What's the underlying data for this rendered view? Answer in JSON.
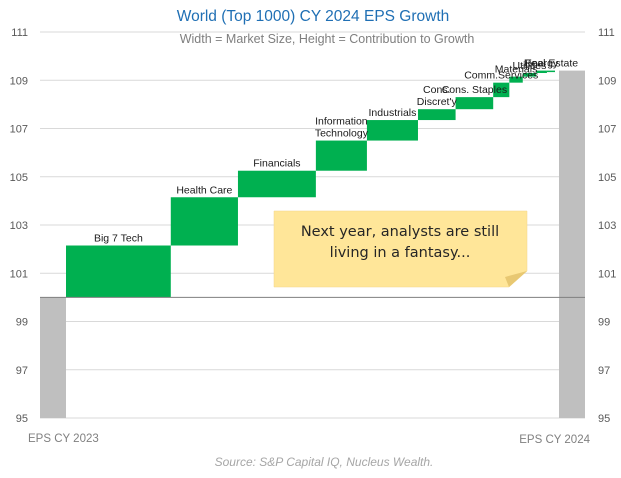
{
  "chart_data": {
    "type": "bar",
    "subtype": "variable-width waterfall (marimekko)",
    "title": "World (Top 1000) CY 2024 EPS Growth",
    "subtitle": "Width = Market Size, Height = Contribution to Growth",
    "ylim": [
      95,
      111
    ],
    "yticks": [
      95,
      97,
      99,
      101,
      103,
      105,
      107,
      109,
      111
    ],
    "baseline": 100,
    "grid": true,
    "start": {
      "label": "EPS CY 2023",
      "value": 100
    },
    "end": {
      "label": "EPS CY 2024",
      "value": 109.4
    },
    "segments": [
      {
        "label": "Big 7 Tech",
        "weight": 19.5,
        "from": 100.0,
        "to": 102.15
      },
      {
        "label": "Health Care",
        "weight": 12.5,
        "from": 102.15,
        "to": 104.15
      },
      {
        "label": "Financials",
        "weight": 14.5,
        "from": 104.15,
        "to": 105.25
      },
      {
        "label": "Information Technology",
        "weight": 9.5,
        "from": 105.25,
        "to": 106.5
      },
      {
        "label": "Industrials",
        "weight": 9.5,
        "from": 106.5,
        "to": 107.35
      },
      {
        "label": "Cons. Discret'y",
        "weight": 7.0,
        "from": 107.35,
        "to": 107.8
      },
      {
        "label": "Cons. Staples",
        "weight": 7.0,
        "from": 107.8,
        "to": 108.3
      },
      {
        "label": "Comm.Services",
        "weight": 3.0,
        "from": 108.3,
        "to": 108.9
      },
      {
        "label": "Materials",
        "weight": 2.5,
        "from": 108.9,
        "to": 109.15
      },
      {
        "label": "Utilities",
        "weight": 2.5,
        "from": 109.15,
        "to": 109.3
      },
      {
        "label": "Energy",
        "weight": 2.0,
        "from": 109.3,
        "to": 109.4
      },
      {
        "label": "Real Estate",
        "weight": 1.5,
        "from": 109.4,
        "to": 109.4
      }
    ],
    "colors": {
      "segment": "#00b050",
      "total": "#bfbfbf"
    },
    "source": "Source: S&P Capital IQ, Nucleus Wealth."
  },
  "annotation": {
    "lines": [
      "Next year, analysts are still",
      "living in a fantasy..."
    ],
    "color": "#ffe699"
  }
}
